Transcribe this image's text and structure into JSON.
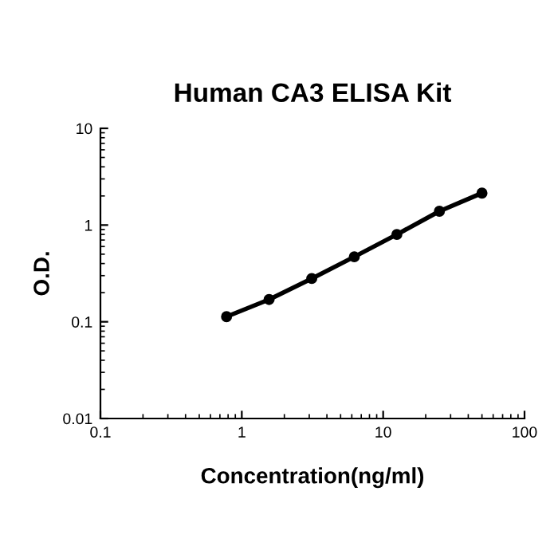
{
  "chart_data": {
    "type": "line",
    "title": "Human CA3 ELISA Kit",
    "xlabel": "Concentration(ng/ml)",
    "ylabel": "O.D.",
    "x": [
      0.78,
      1.56,
      3.125,
      6.25,
      12.5,
      25,
      50
    ],
    "series": [
      {
        "color": "#000000",
        "values": [
          0.113,
          0.17,
          0.28,
          0.47,
          0.8,
          1.39,
          2.14
        ]
      }
    ],
    "log": "xy",
    "xlim": [
      0.1,
      100
    ],
    "ylim": [
      0.01,
      10
    ],
    "xticks": [
      0.1,
      1,
      10,
      100
    ],
    "yticks": [
      0.01,
      0.1,
      1,
      10
    ],
    "marker": "circle",
    "line_style": "solid",
    "grid": false,
    "legend": false
  }
}
